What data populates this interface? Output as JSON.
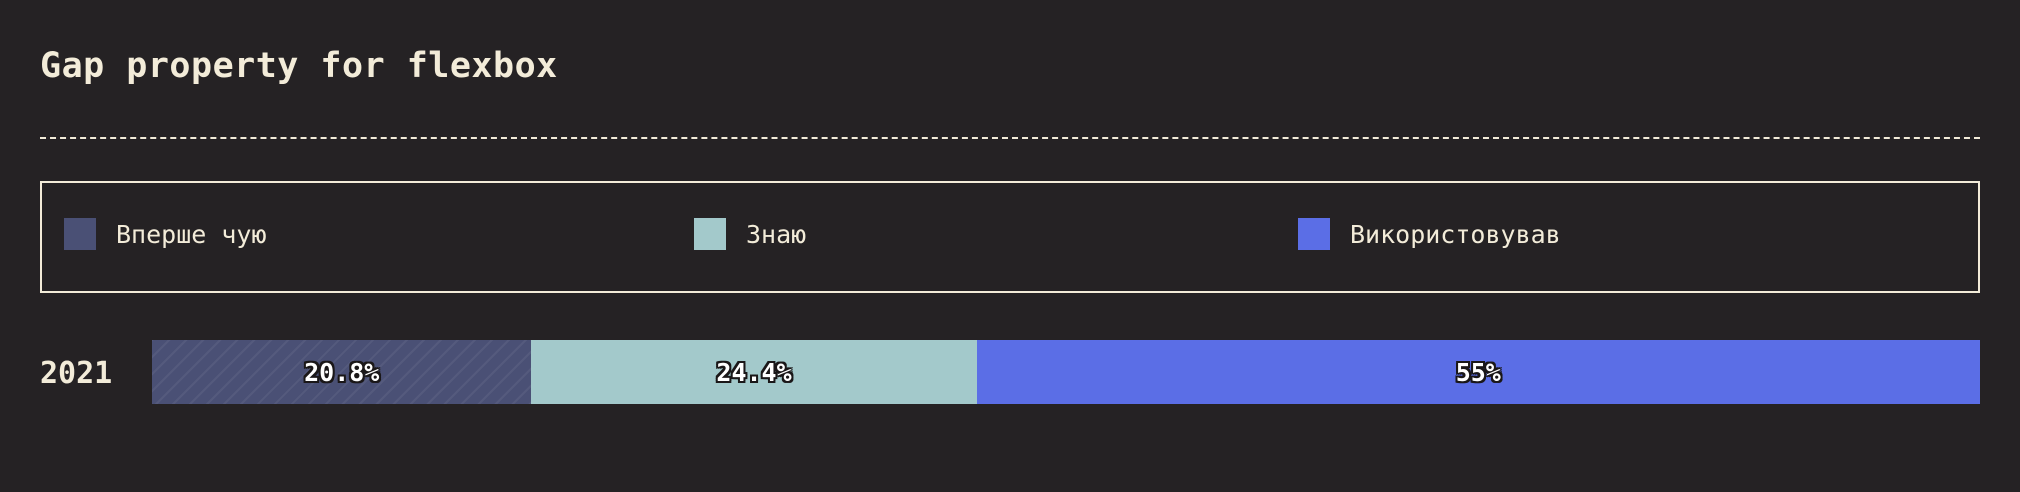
{
  "title": "Gap property for flexbox",
  "legend": [
    {
      "label": "Вперше чую",
      "color": "#4a5075"
    },
    {
      "label": "Знаю",
      "color": "#a3c9cb"
    },
    {
      "label": "Використовував",
      "color": "#5b6ee6"
    }
  ],
  "chart_data": {
    "type": "bar",
    "orientation": "horizontal",
    "stacked": true,
    "normalized": true,
    "categories": [
      "2021"
    ],
    "series": [
      {
        "name": "Вперше чую",
        "values": [
          20.8
        ],
        "label": "20.8%",
        "color": "#4a5075",
        "pattern": "hatched"
      },
      {
        "name": "Знаю",
        "values": [
          24.4
        ],
        "label": "24.4%",
        "color": "#a3c9cb"
      },
      {
        "name": "Використовував",
        "values": [
          55
        ],
        "label": "55%",
        "color": "#5b6ee6"
      }
    ],
    "title": "Gap property for flexbox",
    "xlim": [
      0,
      100
    ],
    "grid": false,
    "legend_position": "top"
  }
}
